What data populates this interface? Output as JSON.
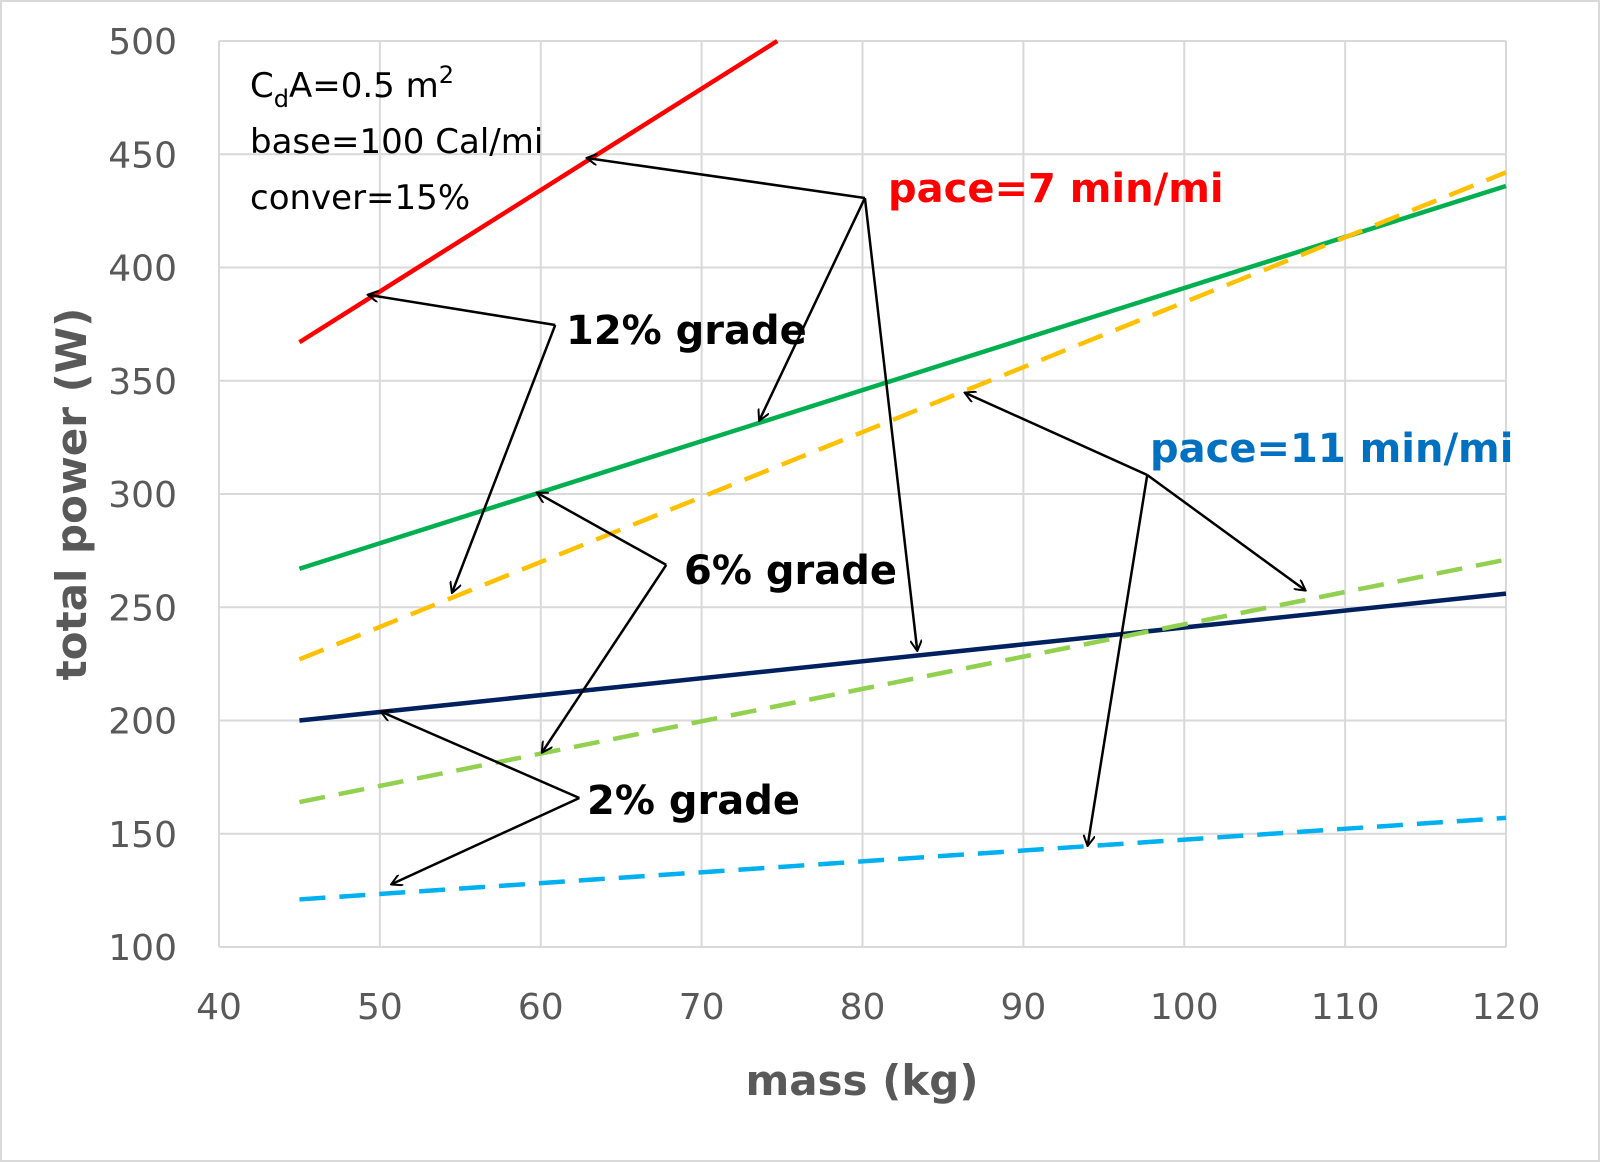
{
  "chart_data": {
    "type": "line",
    "xlabel": "mass (kg)",
    "ylabel": "total power (W)",
    "xlim": [
      40,
      120
    ],
    "ylim": [
      100,
      500
    ],
    "xticks": [
      40,
      50,
      60,
      70,
      80,
      90,
      100,
      110,
      120
    ],
    "yticks": [
      100,
      150,
      200,
      250,
      300,
      350,
      400,
      450,
      500
    ],
    "grid": true,
    "series": [
      {
        "pace": "7 min/mi",
        "grade": "12%",
        "color": "#ff0000",
        "dash": false,
        "x": [
          45,
          74.7
        ],
        "y": [
          367,
          500
        ]
      },
      {
        "pace": "7 min/mi",
        "grade": "6%",
        "color": "#00b050",
        "dash": false,
        "x": [
          45,
          120
        ],
        "y": [
          267,
          436
        ]
      },
      {
        "pace": "7 min/mi",
        "grade": "2%",
        "color": "#002060",
        "dash": false,
        "x": [
          45,
          120
        ],
        "y": [
          200,
          256
        ]
      },
      {
        "pace": "11 min/mi",
        "grade": "12%",
        "color": "#ffc000",
        "dash": true,
        "x": [
          45,
          120
        ],
        "y": [
          227,
          442
        ]
      },
      {
        "pace": "11 min/mi",
        "grade": "6%",
        "color": "#92d050",
        "dash": true,
        "x": [
          45,
          120
        ],
        "y": [
          164,
          271
        ]
      },
      {
        "pace": "11 min/mi",
        "grade": "2%",
        "color": "#00b0f0",
        "dash": true,
        "x": [
          45,
          120
        ],
        "y": [
          121,
          157
        ]
      }
    ],
    "notes": {
      "cda": {
        "c": "C",
        "sub": "d",
        "rest": "A=0.5 m",
        "sup": "2"
      },
      "base": "base=100 Cal/mi",
      "conver": "conver=15%"
    },
    "annotations": [
      {
        "text": "pace=7 min/mi",
        "color": "#ff0000",
        "from": [
          80.15,
          430.7
        ],
        "to": [
          [
            62.9,
            448.3
          ],
          [
            73.6,
            332.7
          ],
          [
            83.4,
            231.1
          ]
        ]
      },
      {
        "text": "12% grade",
        "color": "#000000",
        "from": [
          60.9,
          374.6
        ],
        "to": [
          [
            49.3,
            387.9
          ],
          [
            54.5,
            256.7
          ]
        ]
      },
      {
        "text": "6% grade",
        "color": "#000000",
        "from": [
          67.8,
          268.7
        ],
        "to": [
          [
            59.8,
            300.4
          ],
          [
            60.1,
            186.1
          ]
        ]
      },
      {
        "text": "2% grade",
        "color": "#000000",
        "from": [
          62.4,
          165.8
        ],
        "to": [
          [
            50.1,
            203.8
          ],
          [
            50.75,
            127.8
          ]
        ]
      },
      {
        "text": "pace=11 min/mi",
        "color": "#0070c0",
        "from": [
          97.7,
          308.4
        ],
        "to": [
          [
            86.4,
            344.6
          ],
          [
            107.5,
            257.6
          ],
          [
            94.0,
            145.0
          ]
        ]
      }
    ]
  }
}
